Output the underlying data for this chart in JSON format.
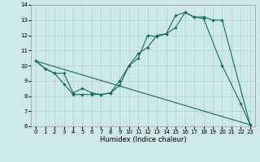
{
  "xlabel": "Humidex (Indice chaleur)",
  "xlim": [
    -0.5,
    23.5
  ],
  "ylim": [
    6,
    14
  ],
  "xticks": [
    0,
    1,
    2,
    3,
    4,
    5,
    6,
    7,
    8,
    9,
    10,
    11,
    12,
    13,
    14,
    15,
    16,
    17,
    18,
    19,
    20,
    21,
    22,
    23
  ],
  "yticks": [
    6,
    7,
    8,
    9,
    10,
    11,
    12,
    13,
    14
  ],
  "bg_color": "#cce8e8",
  "grid_color": "#b0d0d0",
  "line_color": "#1a6b5a",
  "series": [
    {
      "x": [
        0,
        1,
        2,
        3,
        4,
        5,
        6,
        7,
        8,
        9,
        10,
        11,
        12,
        13,
        14,
        15,
        16,
        17,
        18,
        20,
        22,
        23
      ],
      "y": [
        10.3,
        9.8,
        9.5,
        8.8,
        8.1,
        8.1,
        8.1,
        8.1,
        8.2,
        9.0,
        10.0,
        10.5,
        12.0,
        11.9,
        12.1,
        13.3,
        13.5,
        13.2,
        13.1,
        10.0,
        7.5,
        6.1
      ]
    },
    {
      "x": [
        0,
        1,
        2,
        3,
        4,
        5,
        6,
        7,
        8,
        9,
        10,
        11,
        12,
        13,
        14,
        15,
        16,
        17,
        18,
        19,
        20,
        23
      ],
      "y": [
        10.3,
        9.8,
        9.5,
        9.5,
        8.2,
        8.5,
        8.2,
        8.1,
        8.2,
        8.7,
        10.0,
        10.8,
        11.2,
        12.0,
        12.1,
        12.5,
        13.5,
        13.2,
        13.2,
        13.0,
        13.0,
        6.1
      ]
    },
    {
      "x": [
        0,
        23
      ],
      "y": [
        10.3,
        6.1
      ]
    }
  ]
}
